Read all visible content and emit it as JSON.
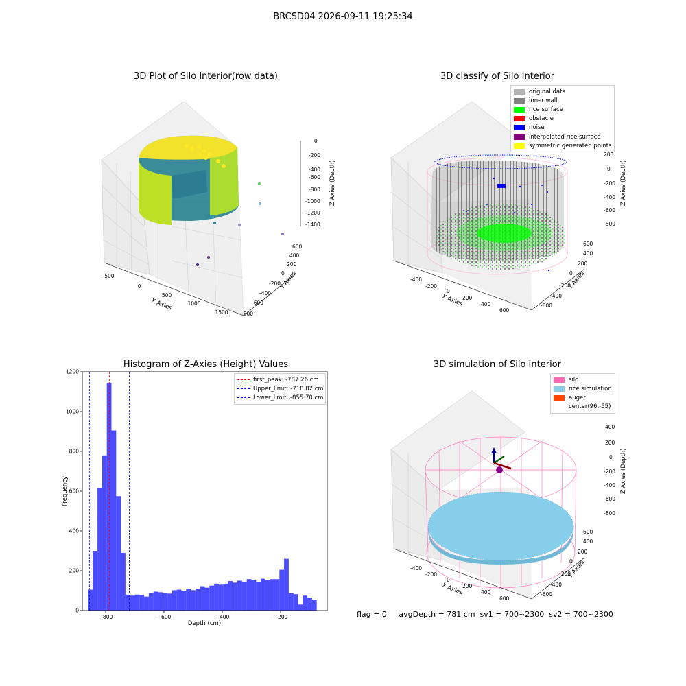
{
  "suptitle": "BRCSD04 2026-09-11 19:25:34",
  "footer": {
    "flag": "flag = 0",
    "avg_depth": "avgDepth = 781 cm",
    "sv1": "sv1 = 700~2300",
    "sv2": "sv2 = 700~2300"
  },
  "panels": {
    "raw": {
      "title": "3D Plot of Silo Interior(row data)",
      "xlabel": "X Axies",
      "ylabel": "Y Axies",
      "zlabel": "Z Axies (Depth)",
      "xticks": [
        "-500",
        "0",
        "500",
        "1000",
        "1500"
      ],
      "yticks": [
        "-800",
        "-600",
        "-400",
        "-200",
        "0",
        "200",
        "400",
        "600"
      ],
      "zticks": [
        "0",
        "-200",
        "-400",
        "-600",
        "-800",
        "-1000",
        "-1200",
        "-1400"
      ]
    },
    "classify": {
      "title": "3D classify of Silo Interior",
      "xlabel": "X Axies",
      "ylabel": "Y Axies",
      "zlabel": "Z Axies (Depth)",
      "xticks": [
        "-400",
        "-200",
        "0",
        "200",
        "400",
        "600"
      ],
      "yticks": [
        "-600",
        "-400",
        "-200",
        "0",
        "200",
        "400",
        "600"
      ],
      "zticks": [
        "200",
        "0",
        "-200",
        "-400",
        "-600",
        "-800"
      ],
      "zextra": "200",
      "legend": [
        {
          "label": "original data",
          "color": "#b3b3b3"
        },
        {
          "label": "inner wall",
          "color": "#808080"
        },
        {
          "label": "rice surface",
          "color": "#00ff00"
        },
        {
          "label": "obstacle",
          "color": "#ff0000"
        },
        {
          "label": "noise",
          "color": "#0000ff"
        },
        {
          "label": "interpolated rice surface",
          "color": "#800080"
        },
        {
          "label": "symmetric generated points",
          "color": "#ffff00"
        }
      ]
    },
    "simulation": {
      "title": "3D simulation of Silo Interior",
      "xlabel": "X Axies",
      "ylabel": "Y Axies",
      "zlabel": "Z Axies (Depth)",
      "xticks": [
        "-400",
        "-200",
        "0",
        "200",
        "400",
        "600"
      ],
      "yticks": [
        "-600",
        "-400",
        "-200",
        "0",
        "200",
        "400",
        "600"
      ],
      "zticks": [
        "400",
        "200",
        "0",
        "-200",
        "-400",
        "-600",
        "-800"
      ],
      "legend": [
        {
          "label": "silo",
          "color": "#ff69b4"
        },
        {
          "label": "rice simulation",
          "color": "#87ceeb"
        },
        {
          "label": "auger",
          "color": "#ff4500"
        },
        {
          "label": "center(96,-55)",
          "color": "#ffffff"
        }
      ]
    }
  },
  "chart_data": [
    {
      "type": "bar",
      "title": "Histogram of Z-Axies (Height) Values",
      "xlabel": "Depth (cm)",
      "ylabel": "Frequency",
      "xlim": [
        -880,
        -40
      ],
      "ylim": [
        0,
        1200
      ],
      "xticks": [
        -800,
        -600,
        -400,
        -200,
        0
      ],
      "yticks": [
        0,
        200,
        400,
        600,
        800,
        1000,
        1200
      ],
      "bar_color": "#0000ff",
      "bin_edges_start": -860,
      "bin_width": 16,
      "values": [
        105,
        300,
        615,
        780,
        1145,
        905,
        575,
        290,
        80,
        75,
        80,
        78,
        70,
        88,
        95,
        92,
        88,
        85,
        102,
        105,
        100,
        110,
        102,
        110,
        122,
        115,
        125,
        135,
        130,
        135,
        148,
        140,
        150,
        145,
        158,
        155,
        145,
        160,
        152,
        158,
        158,
        205,
        260,
        88,
        82,
        30,
        75,
        65,
        55
      ],
      "vlines": [
        {
          "label": "first_peak: -787.26 cm",
          "x": -787.26,
          "color": "#ff0000"
        },
        {
          "label": "Upper_limit: -718.82 cm",
          "x": -718.82,
          "color": "#0000ff"
        },
        {
          "label": "Lower_limit: -855.70 cm",
          "x": -855.7,
          "color": "#0000ff"
        }
      ]
    }
  ]
}
